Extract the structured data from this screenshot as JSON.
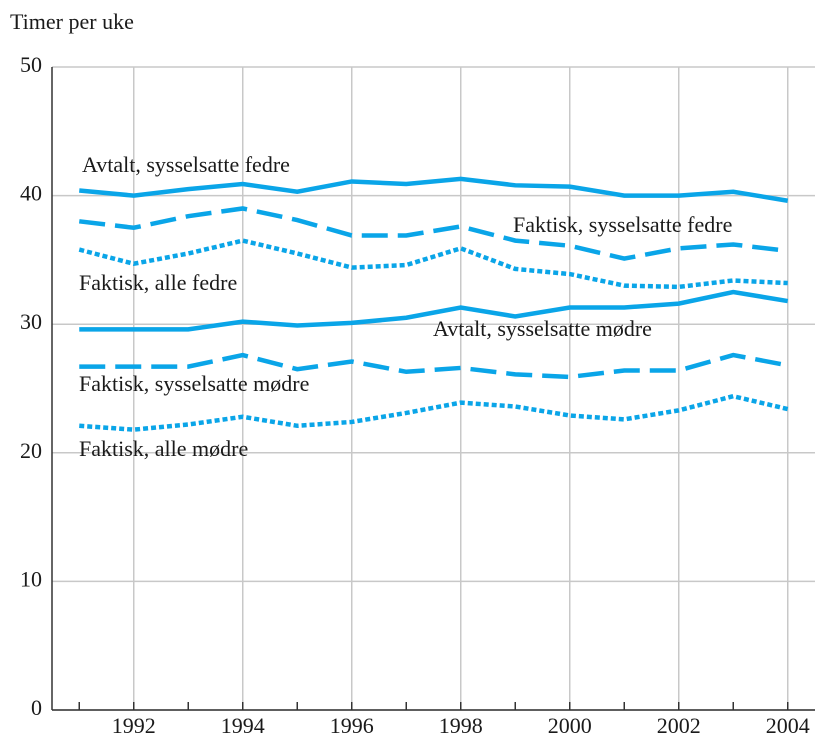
{
  "chart_data": {
    "type": "line",
    "ylabel": "Timer per uke",
    "x": [
      1991,
      1992,
      1993,
      1994,
      1995,
      1996,
      1997,
      1998,
      1999,
      2000,
      2001,
      2002,
      2003,
      2004
    ],
    "series": [
      {
        "name": "Avtalt, sysselsatte fedre",
        "color": "#0aa5e8",
        "dash": "solid",
        "values": [
          40.4,
          40.0,
          40.5,
          40.9,
          40.3,
          41.1,
          40.9,
          41.3,
          40.8,
          40.7,
          40.0,
          40.0,
          40.3,
          39.6
        ]
      },
      {
        "name": "Faktisk, sysselsatte fedre",
        "color": "#0aa5e8",
        "dash": "dashed",
        "values": [
          38.0,
          37.5,
          38.4,
          39.0,
          38.1,
          36.9,
          36.9,
          37.6,
          36.5,
          36.1,
          35.1,
          35.9,
          36.2,
          35.7
        ]
      },
      {
        "name": "Faktisk, alle fedre",
        "color": "#0aa5e8",
        "dash": "dotted",
        "values": [
          35.8,
          34.7,
          35.5,
          36.5,
          35.5,
          34.4,
          34.6,
          35.9,
          34.3,
          33.9,
          33.0,
          32.9,
          33.4,
          33.2
        ]
      },
      {
        "name": "Avtalt, sysselsatte mødre",
        "color": "#0aa5e8",
        "dash": "solid",
        "values": [
          29.6,
          29.6,
          29.6,
          30.2,
          29.9,
          30.1,
          30.5,
          31.3,
          30.6,
          31.3,
          31.3,
          31.6,
          32.5,
          31.8
        ]
      },
      {
        "name": "Faktisk, sysselsatte mødre",
        "color": "#0aa5e8",
        "dash": "dashed",
        "values": [
          26.7,
          26.7,
          26.7,
          27.6,
          26.5,
          27.1,
          26.3,
          26.6,
          26.1,
          25.9,
          26.4,
          26.4,
          27.6,
          26.8
        ]
      },
      {
        "name": "Faktisk, alle mødre",
        "color": "#0aa5e8",
        "dash": "dotted",
        "values": [
          22.1,
          21.8,
          22.2,
          22.8,
          22.1,
          22.4,
          23.1,
          23.9,
          23.6,
          22.9,
          22.6,
          23.3,
          24.4,
          23.4
        ]
      }
    ],
    "xlim": [
      1990.5,
      2004.5
    ],
    "xticks": [
      1992,
      1994,
      1996,
      1998,
      2000,
      2002,
      2004
    ],
    "xminorticks": [
      1991,
      1992,
      1993,
      1994,
      1995,
      1996,
      1997,
      1998,
      1999,
      2000,
      2001,
      2002,
      2003,
      2004
    ],
    "ylim": [
      0,
      50
    ],
    "yticks": [
      0,
      10,
      20,
      30,
      40,
      50
    ],
    "grid": true
  }
}
